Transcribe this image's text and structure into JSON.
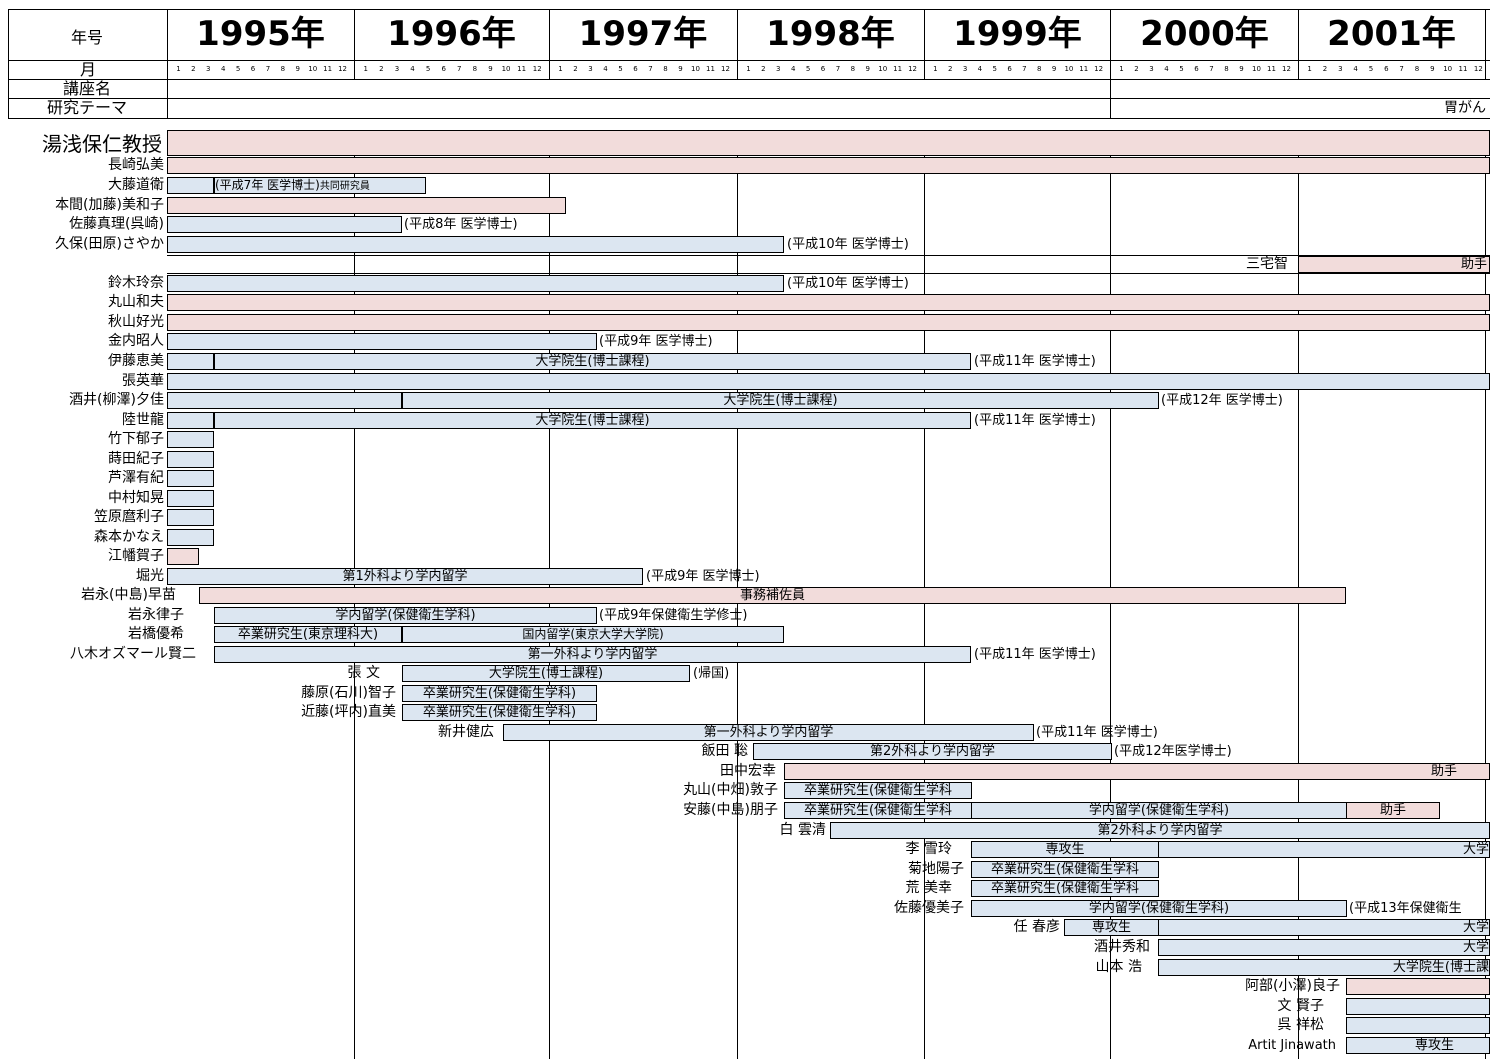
{
  "header": {
    "era_label": "年号",
    "month_label": "月",
    "course_label": "講座名",
    "theme_label": "研究テーマ",
    "theme_text": "胃がん",
    "years": [
      "1995年",
      "1996年",
      "1997年",
      "1998年",
      "1999年",
      "2000年",
      "2001年"
    ],
    "months": [
      "1",
      "2",
      "3",
      "4",
      "5",
      "6",
      "7",
      "8",
      "9",
      "10",
      "11",
      "12"
    ]
  },
  "professor": "湯浅保仁教授",
  "members": [
    {
      "name": "長崎弘美"
    },
    {
      "name": "大藤道衛",
      "bar1": "(平成7年 医学博士)",
      "bar2": "共同研究員"
    },
    {
      "name": "本間(加藤)美和子"
    },
    {
      "name": "佐藤真理(呉崎)",
      "note": "(平成8年 医学博士)"
    },
    {
      "name": "久保(田原)さやか",
      "note": "(平成10年 医学博士)"
    },
    {
      "name": "三宅智",
      "bar": "助手"
    },
    {
      "name": "鈴木玲奈",
      "note": "(平成10年 医学博士)"
    },
    {
      "name": "丸山和夫"
    },
    {
      "name": "秋山好光"
    },
    {
      "name": "金内昭人",
      "note": "(平成9年 医学博士)"
    },
    {
      "name": "伊藤恵美",
      "bar": "大学院生(博士課程)",
      "note": "(平成11年 医学博士)"
    },
    {
      "name": "張英華"
    },
    {
      "name": "酒井(柳澤)夕佳",
      "bar": "大学院生(博士課程)",
      "note": "(平成12年 医学博士)"
    },
    {
      "name": "陸世龍",
      "bar": "大学院生(博士課程)",
      "note": "(平成11年 医学博士)"
    },
    {
      "name": "竹下郁子"
    },
    {
      "name": "蒔田紀子"
    },
    {
      "name": "芦澤有紀"
    },
    {
      "name": "中村知晃"
    },
    {
      "name": "笠原麿利子"
    },
    {
      "name": "森本かなえ"
    },
    {
      "name": "江幡賀子"
    },
    {
      "name": "堀光",
      "bar": "第1外科より学内留学",
      "note": "(平成9年 医学博士)"
    },
    {
      "name": "岩永(中島)早苗",
      "bar": "事務補佐員"
    },
    {
      "name": "岩永律子",
      "bar": "学内留学(保健衛生学科)",
      "note": "(平成9年保健衛生学修士)"
    },
    {
      "name": "岩橋優希",
      "bar1": "卒業研究生(東京理科大)",
      "bar2": "国内留学(東京大学大学院)"
    },
    {
      "name": "八木オズマール賢二",
      "bar": "第一外科より学内留学",
      "note": "(平成11年 医学博士)"
    },
    {
      "name": "張 文",
      "bar": "大学院生(博士課程)",
      "note": "(帰国)"
    },
    {
      "name": "藤原(石川)智子",
      "bar": "卒業研究生(保健衛生学科)"
    },
    {
      "name": "近藤(坪内)直美",
      "bar": "卒業研究生(保健衛生学科)"
    },
    {
      "name": "新井健広",
      "bar": "第一外科より学内留学",
      "note": "(平成11年 医学博士)"
    },
    {
      "name": "飯田 聡",
      "bar": "第2外科より学内留学",
      "note": "(平成12年医学博士)"
    },
    {
      "name": "田中宏幸",
      "bar": "助手"
    },
    {
      "name": "丸山(中畑)敦子",
      "bar": "卒業研究生(保健衛生学科"
    },
    {
      "name": "安藤(中島)朋子",
      "bar1": "卒業研究生(保健衛生学科",
      "bar2": "学内留学(保健衛生学科)",
      "bar3": "助手"
    },
    {
      "name": "白 雲清",
      "bar": "第2外科より学内留学"
    },
    {
      "name": "李 雪玲",
      "bar1": "専攻生",
      "bar2": "大学"
    },
    {
      "name": "菊地陽子",
      "bar": "卒業研究生(保健衛生学科"
    },
    {
      "name": "荒 美幸",
      "bar": "卒業研究生(保健衛生学科"
    },
    {
      "name": "佐藤優美子",
      "bar": "学内留学(保健衛生学科)",
      "note": "(平成13年保健衛生"
    },
    {
      "name": "任 春彦",
      "bar1": "専攻生",
      "bar2": "大学"
    },
    {
      "name": "酒井秀和",
      "bar": "大学"
    },
    {
      "name": "山本 浩",
      "bar": "大学院生(博士課"
    },
    {
      "name": "阿部(小澤)良子"
    },
    {
      "name": "文 賢子"
    },
    {
      "name": "呉 祥松"
    },
    {
      "name": "Artit Jinawath",
      "bar": "専攻生"
    }
  ]
}
